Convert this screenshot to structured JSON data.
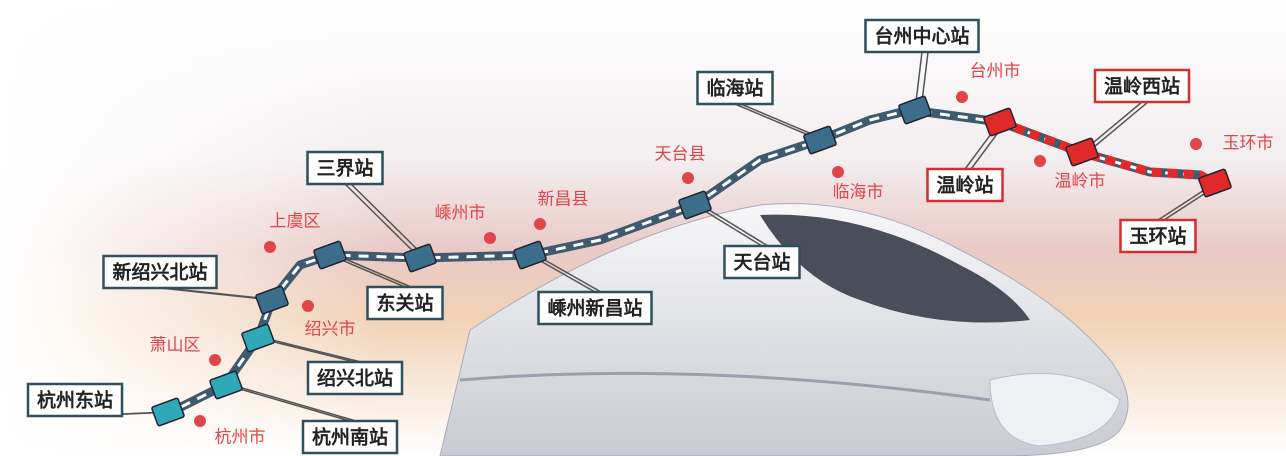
{
  "stations": [
    "杭州东站",
    "杭州南站",
    "绍兴北站",
    "新绍兴北站",
    "东关站",
    "三界站",
    "嵊州新昌站",
    "天台站",
    "临海站",
    "台州中心站",
    "温岭站",
    "温岭西站",
    "玉环站"
  ],
  "cities": [
    "萧山区",
    "杭州市",
    "绍兴市",
    "上虞区",
    "嵊州市",
    "新昌县",
    "天台县",
    "临海市",
    "台州市",
    "温岭市",
    "玉环市"
  ]
}
